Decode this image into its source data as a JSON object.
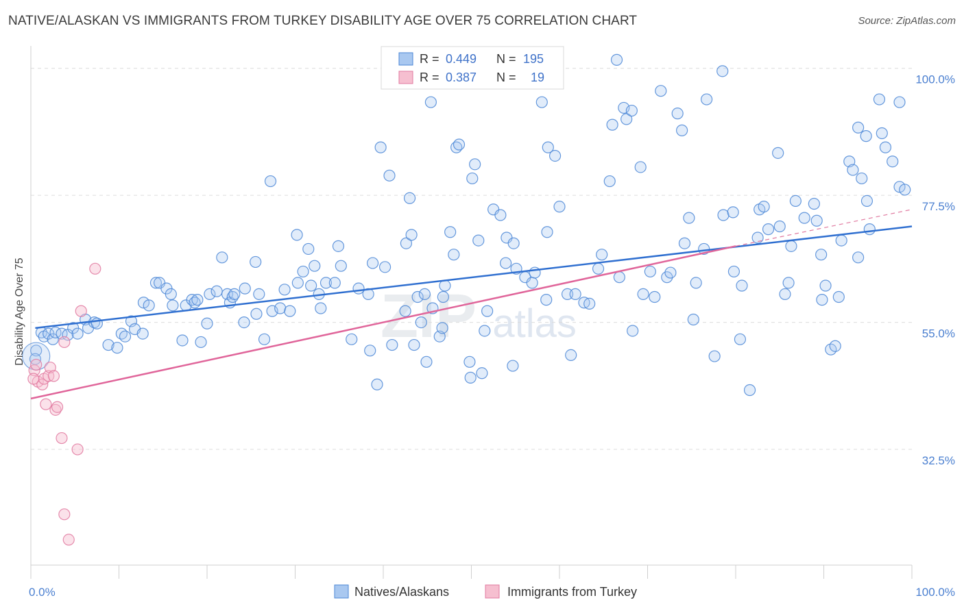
{
  "title": "NATIVE/ALASKAN VS IMMIGRANTS FROM TURKEY DISABILITY AGE OVER 75 CORRELATION CHART",
  "source": "Source: ZipAtlas.com",
  "watermark": "ZIPatlas",
  "colors": {
    "blue": "#4a86d6",
    "blue_fill": "#a9c8f0",
    "pink": "#e0789f",
    "pink_fill": "#f6bfd0",
    "tick": "#4a7fd0"
  },
  "legend_top": {
    "rows": [
      {
        "r_label": "R =",
        "r_value": "0.449",
        "n_label": "N =",
        "n_value": "195"
      },
      {
        "r_label": "R =",
        "r_value": "0.387",
        "n_label": "N =",
        "n_value": "19"
      }
    ]
  },
  "legend_bottom": {
    "items": [
      "Natives/Alaskans",
      "Immigrants from Turkey"
    ]
  },
  "chart_data": {
    "type": "scatter",
    "xlabel": "",
    "ylabel": "Disability Age Over 75",
    "xlim": [
      0,
      100
    ],
    "ylim": [
      12,
      103
    ],
    "x_tick_labels": [
      "0.0%",
      "100.0%"
    ],
    "y_ticks": [
      {
        "value": 32.5,
        "label": "32.5%"
      },
      {
        "value": 55.0,
        "label": "55.0%"
      },
      {
        "value": 77.5,
        "label": "77.5%"
      },
      {
        "value": 100.0,
        "label": "100.0%"
      }
    ],
    "series": [
      {
        "name": "Natives/Alaskans",
        "trend": [
          [
            0.5,
            54.0
          ],
          [
            100,
            72.0
          ]
        ],
        "points": [
          [
            0.6,
            50.0
          ],
          [
            0.5,
            48.5
          ],
          [
            1.2,
            53.2
          ],
          [
            1.5,
            52.5
          ],
          [
            2.0,
            53.0
          ],
          [
            2.5,
            52.0
          ],
          [
            2.8,
            53.2
          ],
          [
            3.5,
            53.0
          ],
          [
            4.2,
            52.8
          ],
          [
            4.8,
            54.0
          ],
          [
            5.3,
            53.0
          ],
          [
            6.2,
            55.5
          ],
          [
            6.5,
            54.0
          ],
          [
            7.2,
            55.0
          ],
          [
            7.5,
            54.8
          ],
          [
            8.8,
            51.0
          ],
          [
            9.8,
            50.5
          ],
          [
            10.3,
            53.0
          ],
          [
            10.7,
            52.5
          ],
          [
            11.4,
            55.2
          ],
          [
            11.8,
            53.8
          ],
          [
            12.7,
            53.0
          ],
          [
            12.8,
            58.5
          ],
          [
            13.4,
            58.0
          ],
          [
            14.2,
            62.0
          ],
          [
            14.6,
            62.0
          ],
          [
            15.4,
            61.0
          ],
          [
            15.9,
            60.0
          ],
          [
            16.1,
            58.0
          ],
          [
            17.2,
            51.8
          ],
          [
            17.6,
            58.0
          ],
          [
            18.3,
            59.0
          ],
          [
            18.6,
            58.5
          ],
          [
            18.9,
            59.0
          ],
          [
            19.3,
            51.5
          ],
          [
            20.0,
            54.8
          ],
          [
            20.3,
            60.0
          ],
          [
            21.1,
            60.5
          ],
          [
            21.7,
            66.5
          ],
          [
            22.3,
            60.0
          ],
          [
            22.6,
            58.5
          ],
          [
            22.9,
            59.5
          ],
          [
            23.1,
            60.0
          ],
          [
            24.2,
            55.0
          ],
          [
            24.3,
            61.0
          ],
          [
            25.5,
            65.7
          ],
          [
            25.6,
            56.5
          ],
          [
            25.9,
            60.0
          ],
          [
            26.5,
            52.0
          ],
          [
            27.2,
            80.0
          ],
          [
            27.4,
            57.0
          ],
          [
            28.3,
            57.5
          ],
          [
            28.8,
            60.8
          ],
          [
            29.4,
            57.0
          ],
          [
            30.2,
            70.5
          ],
          [
            30.3,
            62.0
          ],
          [
            30.9,
            64.0
          ],
          [
            31.5,
            68.0
          ],
          [
            31.8,
            61.5
          ],
          [
            32.2,
            65.0
          ],
          [
            32.7,
            60.0
          ],
          [
            32.9,
            57.5
          ],
          [
            33.5,
            62.0
          ],
          [
            34.5,
            62.0
          ],
          [
            34.9,
            68.5
          ],
          [
            35.2,
            65.0
          ],
          [
            36.4,
            52.0
          ],
          [
            37.2,
            61.0
          ],
          [
            38.3,
            60.0
          ],
          [
            38.5,
            50.0
          ],
          [
            38.8,
            65.5
          ],
          [
            39.3,
            44.0
          ],
          [
            39.7,
            86.0
          ],
          [
            40.2,
            64.8
          ],
          [
            40.7,
            81.0
          ],
          [
            41.0,
            51.0
          ],
          [
            42.5,
            57.0
          ],
          [
            42.6,
            69.0
          ],
          [
            43.0,
            77.0
          ],
          [
            43.2,
            70.5
          ],
          [
            43.5,
            51.0
          ],
          [
            43.9,
            59.5
          ],
          [
            44.3,
            55.0
          ],
          [
            44.7,
            60.0
          ],
          [
            44.9,
            48.0
          ],
          [
            45.4,
            94.0
          ],
          [
            45.6,
            57.5
          ],
          [
            46.4,
            52.5
          ],
          [
            46.7,
            54.0
          ],
          [
            46.8,
            59.5
          ],
          [
            47.0,
            61.5
          ],
          [
            47.6,
            71.0
          ],
          [
            48.0,
            67.0
          ],
          [
            48.3,
            86.0
          ],
          [
            48.6,
            86.5
          ],
          [
            49.8,
            48.0
          ],
          [
            49.9,
            45.2
          ],
          [
            50.1,
            80.5
          ],
          [
            50.4,
            83.0
          ],
          [
            50.8,
            69.5
          ],
          [
            51.2,
            46.0
          ],
          [
            51.5,
            53.5
          ],
          [
            51.8,
            57.0
          ],
          [
            52.5,
            75.0
          ],
          [
            53.3,
            74.0
          ],
          [
            53.9,
            65.5
          ],
          [
            54.0,
            70.0
          ],
          [
            54.7,
            47.3
          ],
          [
            54.8,
            69.0
          ],
          [
            55.1,
            64.5
          ],
          [
            56.1,
            63.0
          ],
          [
            56.9,
            62.0
          ],
          [
            57.2,
            63.8
          ],
          [
            58.0,
            94.0
          ],
          [
            58.6,
            71.0
          ],
          [
            58.5,
            59.0
          ],
          [
            58.7,
            86.0
          ],
          [
            59.5,
            84.5
          ],
          [
            60.0,
            75.5
          ],
          [
            60.9,
            60.0
          ],
          [
            61.3,
            49.2
          ],
          [
            61.8,
            60.0
          ],
          [
            62.8,
            58.5
          ],
          [
            63.4,
            58.3
          ],
          [
            64.4,
            64.5
          ],
          [
            64.8,
            67.0
          ],
          [
            65.7,
            80.0
          ],
          [
            66.0,
            90.0
          ],
          [
            66.8,
            63.0
          ],
          [
            66.5,
            101.5
          ],
          [
            67.3,
            93.0
          ],
          [
            67.6,
            91.0
          ],
          [
            68.2,
            92.5
          ],
          [
            68.3,
            53.5
          ],
          [
            69.2,
            82.5
          ],
          [
            69.5,
            60.0
          ],
          [
            70.3,
            64.0
          ],
          [
            70.8,
            59.5
          ],
          [
            71.5,
            96.0
          ],
          [
            72.2,
            63.0
          ],
          [
            72.6,
            63.8
          ],
          [
            73.4,
            92.0
          ],
          [
            73.9,
            89.0
          ],
          [
            74.2,
            69.0
          ],
          [
            74.7,
            73.5
          ],
          [
            75.2,
            55.5
          ],
          [
            75.5,
            62.0
          ],
          [
            76.4,
            68.0
          ],
          [
            76.7,
            94.5
          ],
          [
            77.6,
            49.0
          ],
          [
            78.5,
            99.5
          ],
          [
            78.6,
            74.0
          ],
          [
            79.7,
            74.5
          ],
          [
            79.8,
            64.0
          ],
          [
            80.5,
            52.0
          ],
          [
            80.7,
            61.5
          ],
          [
            81.6,
            43.0
          ],
          [
            82.5,
            70.0
          ],
          [
            82.7,
            75.0
          ],
          [
            83.2,
            75.5
          ],
          [
            83.7,
            71.5
          ],
          [
            84.8,
            85.0
          ],
          [
            85.0,
            72.0
          ],
          [
            85.6,
            60.0
          ],
          [
            86.0,
            62.0
          ],
          [
            86.3,
            68.5
          ],
          [
            86.8,
            76.5
          ],
          [
            87.8,
            73.5
          ],
          [
            88.9,
            76.0
          ],
          [
            89.2,
            73.0
          ],
          [
            89.7,
            67.0
          ],
          [
            89.8,
            59.0
          ],
          [
            90.2,
            61.5
          ],
          [
            90.8,
            50.2
          ],
          [
            91.3,
            50.8
          ],
          [
            91.7,
            59.5
          ],
          [
            92.0,
            69.5
          ],
          [
            92.9,
            83.5
          ],
          [
            93.3,
            82.0
          ],
          [
            93.9,
            89.5
          ],
          [
            93.9,
            66.5
          ],
          [
            94.3,
            80.5
          ],
          [
            94.8,
            88.0
          ],
          [
            94.9,
            76.5
          ],
          [
            95.2,
            71.5
          ],
          [
            96.3,
            94.5
          ],
          [
            96.6,
            88.5
          ],
          [
            97.0,
            86.0
          ],
          [
            97.8,
            83.5
          ],
          [
            98.6,
            94.0
          ],
          [
            98.6,
            79.0
          ],
          [
            99.2,
            78.5
          ]
        ]
      },
      {
        "name": "Immigrants from Turkey",
        "trend": [
          [
            0,
            41.5
          ],
          [
            80,
            68.5
          ]
        ],
        "trend_extension": [
          [
            80,
            68.5
          ],
          [
            100,
            75.0
          ]
        ],
        "points": [
          [
            0.4,
            46.5
          ],
          [
            0.6,
            47.5
          ],
          [
            0.8,
            44.5
          ],
          [
            1.3,
            44.0
          ],
          [
            1.5,
            45.0
          ],
          [
            2.0,
            45.5
          ],
          [
            1.7,
            40.5
          ],
          [
            2.2,
            47.0
          ],
          [
            2.6,
            45.5
          ],
          [
            2.8,
            39.5
          ],
          [
            3.0,
            40.0
          ],
          [
            3.5,
            34.5
          ],
          [
            3.8,
            21.0
          ],
          [
            4.3,
            16.5
          ],
          [
            5.3,
            32.5
          ],
          [
            5.7,
            57.0
          ],
          [
            7.3,
            64.5
          ],
          [
            3.8,
            51.5
          ],
          [
            0.3,
            45.0
          ]
        ]
      }
    ]
  }
}
